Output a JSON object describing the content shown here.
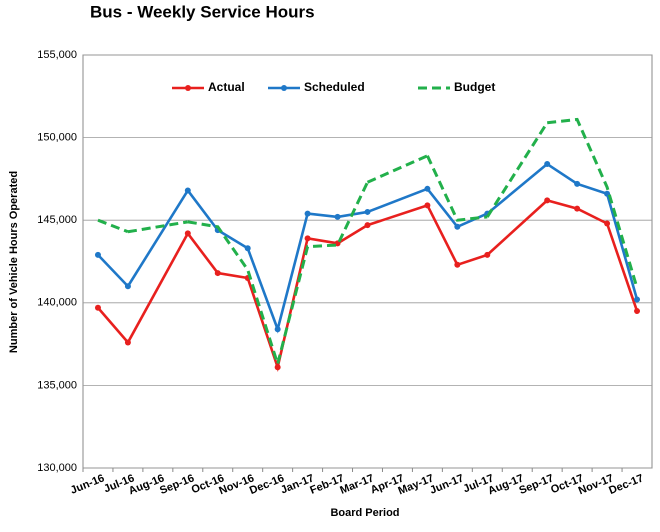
{
  "chart_data": {
    "type": "line",
    "title": "Bus - Weekly Service Hours",
    "x_label": "Board Period",
    "y_label": "Number of Vehicle Hours Operated",
    "categories": [
      "Jun-16",
      "Jul-16",
      "Aug-16",
      "Sep-16",
      "Oct-16",
      "Nov-16",
      "Dec-16",
      "Jan-17",
      "Feb-17",
      "Mar-17",
      "Apr-17",
      "May-17",
      "Jun-17",
      "Jul-17",
      "Aug-17",
      "Sep-17",
      "Oct-17",
      "Nov-17",
      "Dec-17"
    ],
    "series": [
      {
        "name": "Actual",
        "color": "#e8201e",
        "dashed": false,
        "markers": true,
        "values": [
          139700,
          137600,
          null,
          144200,
          141800,
          141500,
          136100,
          143900,
          143600,
          144700,
          null,
          145900,
          142300,
          142900,
          null,
          146200,
          145700,
          144800,
          139500
        ]
      },
      {
        "name": "Scheduled",
        "color": "#1f78c8",
        "dashed": false,
        "markers": true,
        "values": [
          142900,
          141000,
          null,
          146800,
          144400,
          143300,
          138400,
          145400,
          145200,
          145500,
          null,
          146900,
          144600,
          145400,
          null,
          148400,
          147200,
          146600,
          140200
        ]
      },
      {
        "name": "Budget",
        "color": "#22b04b",
        "dashed": true,
        "markers": false,
        "values": [
          145000,
          144300,
          null,
          144900,
          144600,
          142000,
          136300,
          143400,
          143500,
          147300,
          null,
          148900,
          145000,
          145200,
          null,
          150900,
          151100,
          147000,
          140900
        ]
      }
    ],
    "ylim": [
      130000,
      155000
    ],
    "yticks": [
      {
        "value": 130000,
        "label": "130,000"
      },
      {
        "value": 135000,
        "label": "135,000"
      },
      {
        "value": 140000,
        "label": "140,000"
      },
      {
        "value": 145000,
        "label": "145,000"
      },
      {
        "value": 150000,
        "label": "150,000"
      },
      {
        "value": 155000,
        "label": "155,000"
      }
    ],
    "grid": true,
    "span_gaps": true,
    "legend": "top"
  }
}
